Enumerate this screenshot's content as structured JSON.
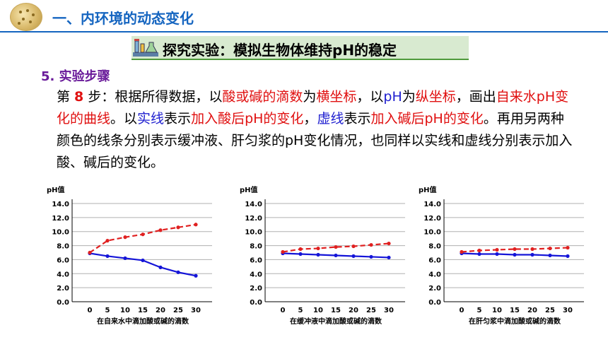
{
  "header": {
    "title": "一、内环境的动态变化"
  },
  "banner": {
    "title": "探究实验：模拟生物体维持pH的稳定"
  },
  "section": {
    "title": "5. 实验步骤"
  },
  "paragraph": {
    "segments": [
      {
        "text": "第 ",
        "style": "normal"
      },
      {
        "text": "8",
        "style": "red-bold"
      },
      {
        "text": " 步：根据所得数据，以",
        "style": "normal"
      },
      {
        "text": "酸或碱的滴数",
        "style": "red"
      },
      {
        "text": "为",
        "style": "normal"
      },
      {
        "text": "横坐标",
        "style": "red"
      },
      {
        "text": "，以",
        "style": "normal"
      },
      {
        "text": "pH",
        "style": "blue"
      },
      {
        "text": "为",
        "style": "normal"
      },
      {
        "text": "纵坐标",
        "style": "red"
      },
      {
        "text": "，画出",
        "style": "normal"
      },
      {
        "text": "自来水pH变化的曲线",
        "style": "red"
      },
      {
        "text": "。以",
        "style": "normal"
      },
      {
        "text": "实线",
        "style": "blue"
      },
      {
        "text": "表示",
        "style": "normal"
      },
      {
        "text": "加入酸后pH的变化",
        "style": "red"
      },
      {
        "text": "，",
        "style": "normal"
      },
      {
        "text": "虚线",
        "style": "blue"
      },
      {
        "text": "表示",
        "style": "normal"
      },
      {
        "text": "加入碱后pH的变化",
        "style": "red"
      },
      {
        "text": "。再用另两种颜色的线条分别表示缓冲液、肝匀浆的pH变化情况，也同样以实线和虚线分别表示加入酸、碱后的变化。",
        "style": "normal"
      }
    ]
  },
  "colors": {
    "acid": "#1515d8",
    "base": "#e02020",
    "grid": "#b0b0b0"
  },
  "chart_data": [
    {
      "type": "line",
      "ylabel": "pH值",
      "xlabel": "在自来水中滴加酸或碱的滴数",
      "x": [
        0,
        5,
        10,
        15,
        20,
        25,
        30
      ],
      "ylim": [
        0,
        14
      ],
      "yticks": [
        "0.0",
        "2.0",
        "4.0",
        "6.0",
        "8.0",
        "10.0",
        "12.0",
        "14.0"
      ],
      "grid": true,
      "series": [
        {
          "style": "solid",
          "color": "#1515d8",
          "values": [
            6.9,
            6.5,
            6.2,
            5.9,
            4.9,
            4.2,
            3.7
          ]
        },
        {
          "style": "dashed",
          "color": "#e02020",
          "values": [
            7.0,
            8.7,
            9.2,
            9.6,
            10.2,
            10.6,
            11.0
          ]
        }
      ]
    },
    {
      "type": "line",
      "ylabel": "pH值",
      "xlabel": "在缓冲液中滴加酸或碱的滴数",
      "x": [
        0,
        5,
        10,
        15,
        20,
        25,
        30
      ],
      "ylim": [
        0,
        14
      ],
      "yticks": [
        "0.0",
        "2.0",
        "4.0",
        "6.0",
        "8.0",
        "10.0",
        "12.0",
        "14.0"
      ],
      "grid": true,
      "series": [
        {
          "style": "solid",
          "color": "#1515d8",
          "values": [
            6.9,
            6.8,
            6.7,
            6.6,
            6.5,
            6.4,
            6.3
          ]
        },
        {
          "style": "dashed",
          "color": "#e02020",
          "values": [
            7.1,
            7.5,
            7.6,
            7.8,
            7.9,
            8.1,
            8.3
          ]
        }
      ]
    },
    {
      "type": "line",
      "ylabel": "pH值",
      "xlabel": "在肝匀浆中滴加酸或碱的滴数",
      "x": [
        0,
        5,
        10,
        15,
        20,
        25,
        30
      ],
      "ylim": [
        0,
        14
      ],
      "yticks": [
        "0.0",
        "2.0",
        "4.0",
        "6.0",
        "8.0",
        "10.0",
        "12.0",
        "14.0"
      ],
      "grid": true,
      "series": [
        {
          "style": "solid",
          "color": "#1515d8",
          "values": [
            6.9,
            6.8,
            6.8,
            6.7,
            6.7,
            6.6,
            6.5
          ]
        },
        {
          "style": "dashed",
          "color": "#e02020",
          "values": [
            7.1,
            7.3,
            7.4,
            7.5,
            7.5,
            7.6,
            7.7
          ]
        }
      ]
    }
  ]
}
